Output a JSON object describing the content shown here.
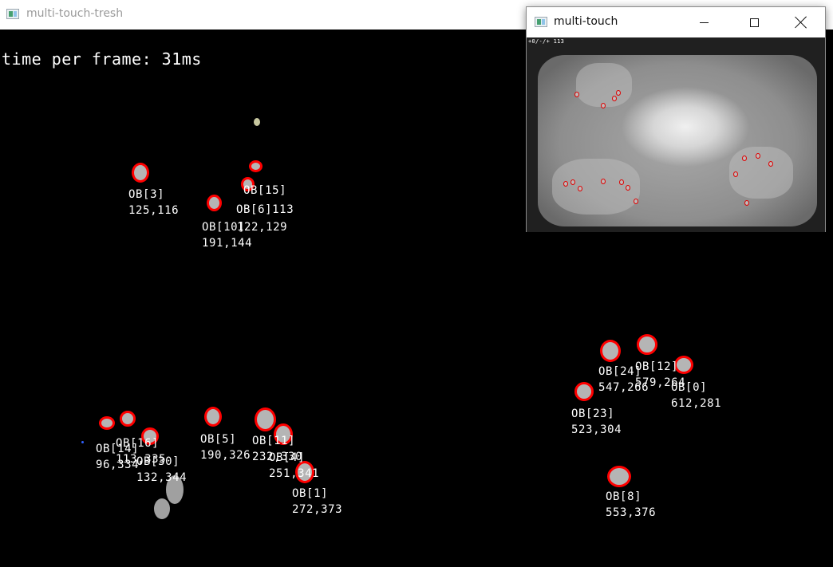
{
  "main_window": {
    "title": "multi-touch-tresh"
  },
  "overlay": {
    "timing": "time per frame: 31ms"
  },
  "labels": [
    {
      "id": "OB[3]",
      "coords": "125,116"
    },
    {
      "id": "OB[15]",
      "coords": "OB[6]113"
    },
    {
      "id": "OB[10]",
      "coords": "122,129"
    },
    {
      "id": "OB[7]",
      "coords": "191,144"
    },
    {
      "id": "OB[24]",
      "coords": "547,266"
    },
    {
      "id": "OB[12]",
      "coords": "579,264"
    },
    {
      "id": "OB[0]",
      "coords": "612,281"
    },
    {
      "id": "OB[23]",
      "coords": "523,304"
    },
    {
      "id": "OB[14]",
      "coords": "96,334"
    },
    {
      "id": "OB[16]",
      "coords": "113,335"
    },
    {
      "id": "OB[30]",
      "coords": "132,344"
    },
    {
      "id": "OB[5]",
      "coords": "190,326"
    },
    {
      "id": "OB[11]",
      "coords": "232,330"
    },
    {
      "id": "OB[4]",
      "coords": "251,341"
    },
    {
      "id": "OB[1]",
      "coords": "272,373"
    },
    {
      "id": "OB[8]",
      "coords": "553,376"
    }
  ],
  "camera_window": {
    "title": "multi-touch",
    "header_text": "+0/-/+ 113",
    "minimize_icon": "minimize-icon",
    "maximize_icon": "maximize-icon",
    "close_icon": "close-icon"
  },
  "colors": {
    "outline": "#ff0000",
    "blob_fill": "#b5b5b5",
    "background": "#000000",
    "text": "#ffffff"
  }
}
